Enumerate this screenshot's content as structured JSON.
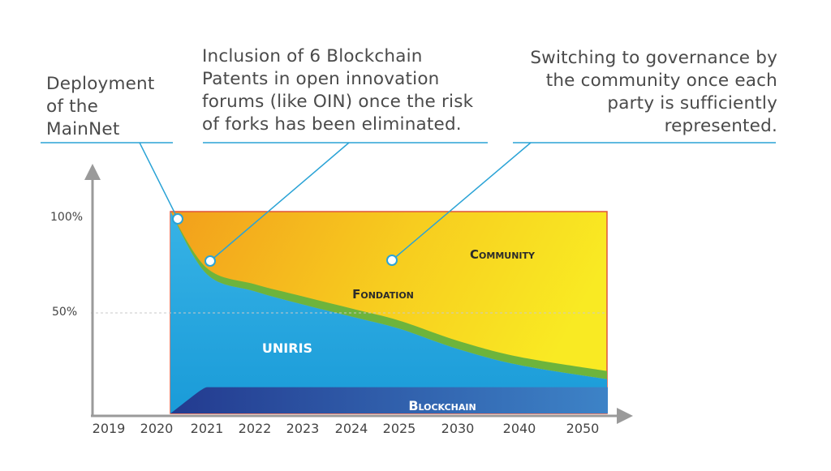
{
  "annotations": {
    "mainnet": [
      "Deployment",
      "of the",
      "MainNet"
    ],
    "patents": [
      "Inclusion of 6 Blockchain",
      "Patents in open innovation",
      "forums (like OIN) once the risk",
      "of forks has been eliminated."
    ],
    "community": [
      "Switching to governance by",
      "the community once each",
      "party is sufficiently",
      "represented."
    ]
  },
  "chart_data": {
    "type": "area",
    "categories": [
      "2019",
      "2020",
      "2021",
      "2022",
      "2023",
      "2024",
      "2025",
      "2030",
      "2040",
      "2050"
    ],
    "y_ticks": [
      "100%",
      "50%"
    ],
    "ylim": [
      0,
      100
    ],
    "grid": false,
    "series": [
      {
        "name": "Blockchain",
        "color": "#2e4fa3",
        "values": [
          null,
          null,
          13,
          13,
          13,
          13,
          13,
          13,
          13,
          13
        ]
      },
      {
        "name": "Uniris",
        "color": "#29a8e0",
        "values": [
          null,
          100,
          72,
          64,
          58,
          52,
          46,
          36,
          28,
          21
        ]
      },
      {
        "name": "Fondation",
        "color": "#6db43c",
        "values": [
          null,
          0,
          3,
          3.5,
          4,
          4,
          4,
          4,
          4,
          4
        ]
      },
      {
        "name": "Community",
        "color": "#f5d222",
        "values": [
          null,
          0,
          25,
          32.5,
          38,
          44,
          50,
          60,
          68,
          75
        ]
      }
    ],
    "labels": {
      "community": "Community",
      "fondation": "Fondation",
      "uniris": "UNIRIS",
      "blockchain": "Blockchain"
    }
  }
}
